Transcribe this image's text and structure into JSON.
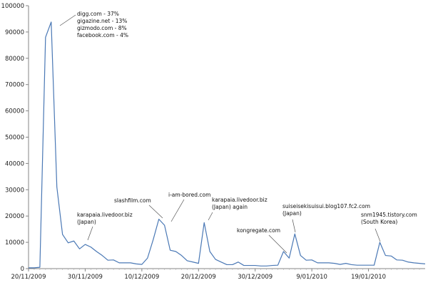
{
  "chart_data": {
    "type": "line",
    "ylim": [
      0,
      100000
    ],
    "yticks": [
      "0",
      "10000",
      "20000",
      "30000",
      "40000",
      "50000",
      "60000",
      "70000",
      "80000",
      "90000",
      "100000"
    ],
    "xticks": [
      "20/11/2009",
      "30/11/2009",
      "10/12/2009",
      "20/12/2009",
      "30/12/2009",
      "9/01/2010",
      "19/01/2010"
    ],
    "x_start": "20/11/2009",
    "x_end": "30/01/2010",
    "series_color": "#4a78b5",
    "values": [
      300,
      300,
      500,
      88000,
      93800,
      31000,
      13000,
      9800,
      10500,
      7500,
      9200,
      8200,
      6500,
      5000,
      3200,
      3300,
      2200,
      2200,
      2200,
      1800,
      1600,
      4000,
      11000,
      18800,
      16500,
      7000,
      6500,
      5000,
      3000,
      2500,
      2000,
      17500,
      6500,
      3500,
      2500,
      1500,
      1500,
      2500,
      1200,
      1200,
      1200,
      1000,
      1000,
      1200,
      1300,
      6500,
      4000,
      13200,
      5000,
      3200,
      3300,
      2200,
      2200,
      2200,
      2000,
      1600,
      2000,
      1500,
      1300,
      1300,
      1300,
      1300,
      10000,
      5000,
      4800,
      3300,
      3200,
      2500,
      2200,
      2000,
      1800
    ],
    "annotations": [
      {
        "lines": [
          "digg.com - 37%",
          "gigazine.net - 13%",
          "gizmodo.com - 8%",
          "facebook.com - 4%"
        ]
      },
      {
        "lines": [
          "karapaia.livedoor.biz",
          "(Japan)"
        ]
      },
      {
        "lines": [
          "slashfilm.com"
        ]
      },
      {
        "lines": [
          "i-am-bored.com"
        ]
      },
      {
        "lines": [
          "karapaia.livedoor.biz",
          "(Japan) again"
        ]
      },
      {
        "lines": [
          "kongregate.com"
        ]
      },
      {
        "lines": [
          "suiseisekisuisui.blog107.fc2.com",
          "(Japan)"
        ]
      },
      {
        "lines": [
          "snm1945.tistory.com",
          "(South Korea)"
        ]
      }
    ]
  }
}
